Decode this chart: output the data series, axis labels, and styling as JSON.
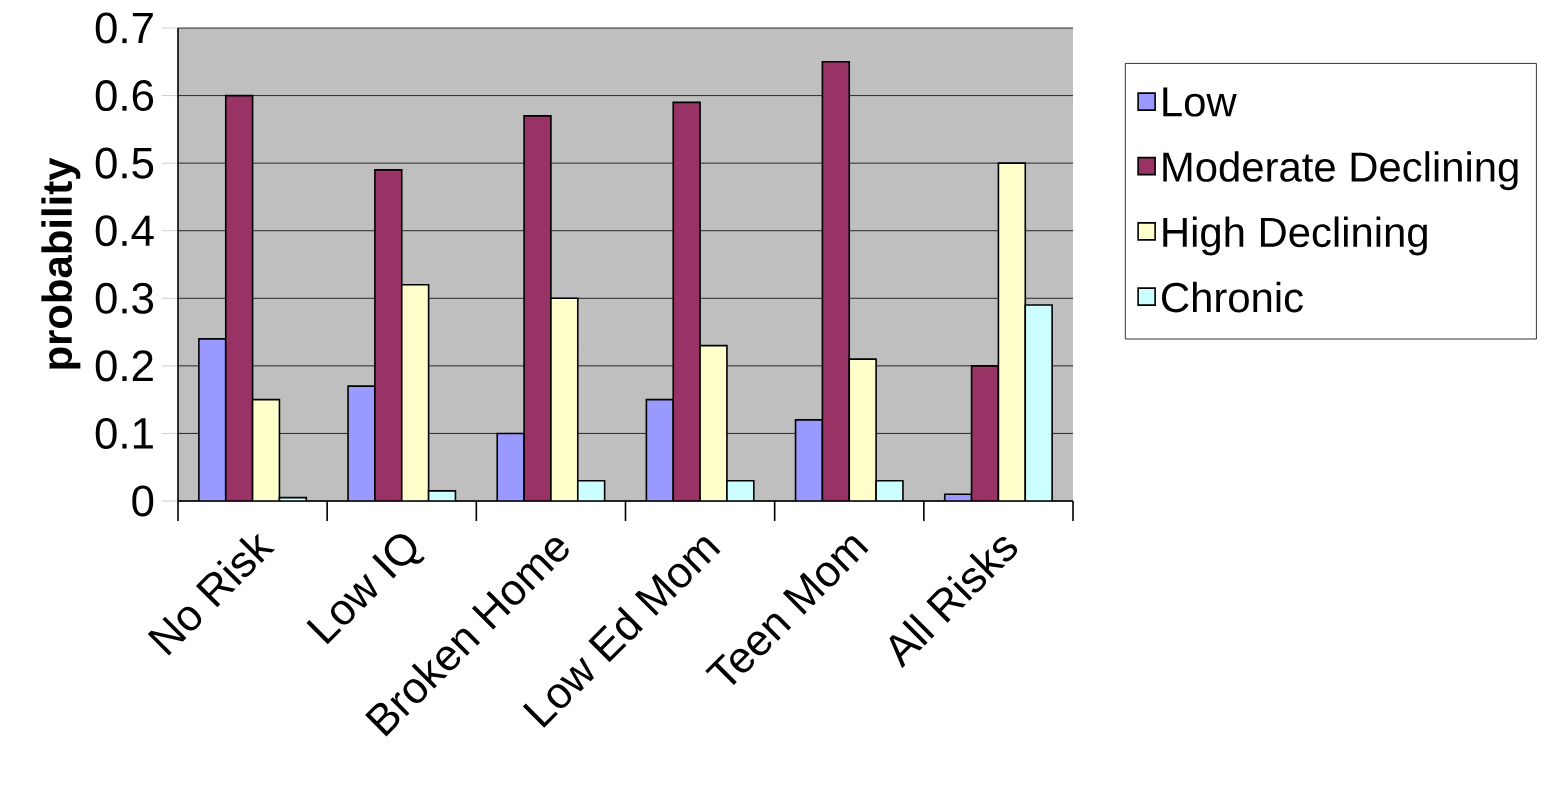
{
  "chart_data": {
    "type": "bar",
    "ylabel": "probability",
    "categories": [
      "No Risk",
      "Low IQ",
      "Broken Home",
      "Low Ed Mom",
      "Teen Mom",
      "All Risks"
    ],
    "series": [
      {
        "name": "Low",
        "color": "#9999ff",
        "values": [
          0.24,
          0.17,
          0.1,
          0.15,
          0.12,
          0.01
        ]
      },
      {
        "name": "Moderate Declining",
        "color": "#993366",
        "values": [
          0.6,
          0.49,
          0.57,
          0.59,
          0.65,
          0.2
        ]
      },
      {
        "name": "High Declining",
        "color": "#ffffcc",
        "values": [
          0.15,
          0.32,
          0.3,
          0.23,
          0.21,
          0.5
        ]
      },
      {
        "name": "Chronic",
        "color": "#ccffff",
        "values": [
          0.005,
          0.015,
          0.03,
          0.03,
          0.03,
          0.29
        ]
      }
    ],
    "ylim": [
      0,
      0.7
    ],
    "yticks": [
      0,
      0.1,
      0.2,
      0.3,
      0.4,
      0.5,
      0.6,
      0.7
    ],
    "grid": "y",
    "legend": "right"
  }
}
